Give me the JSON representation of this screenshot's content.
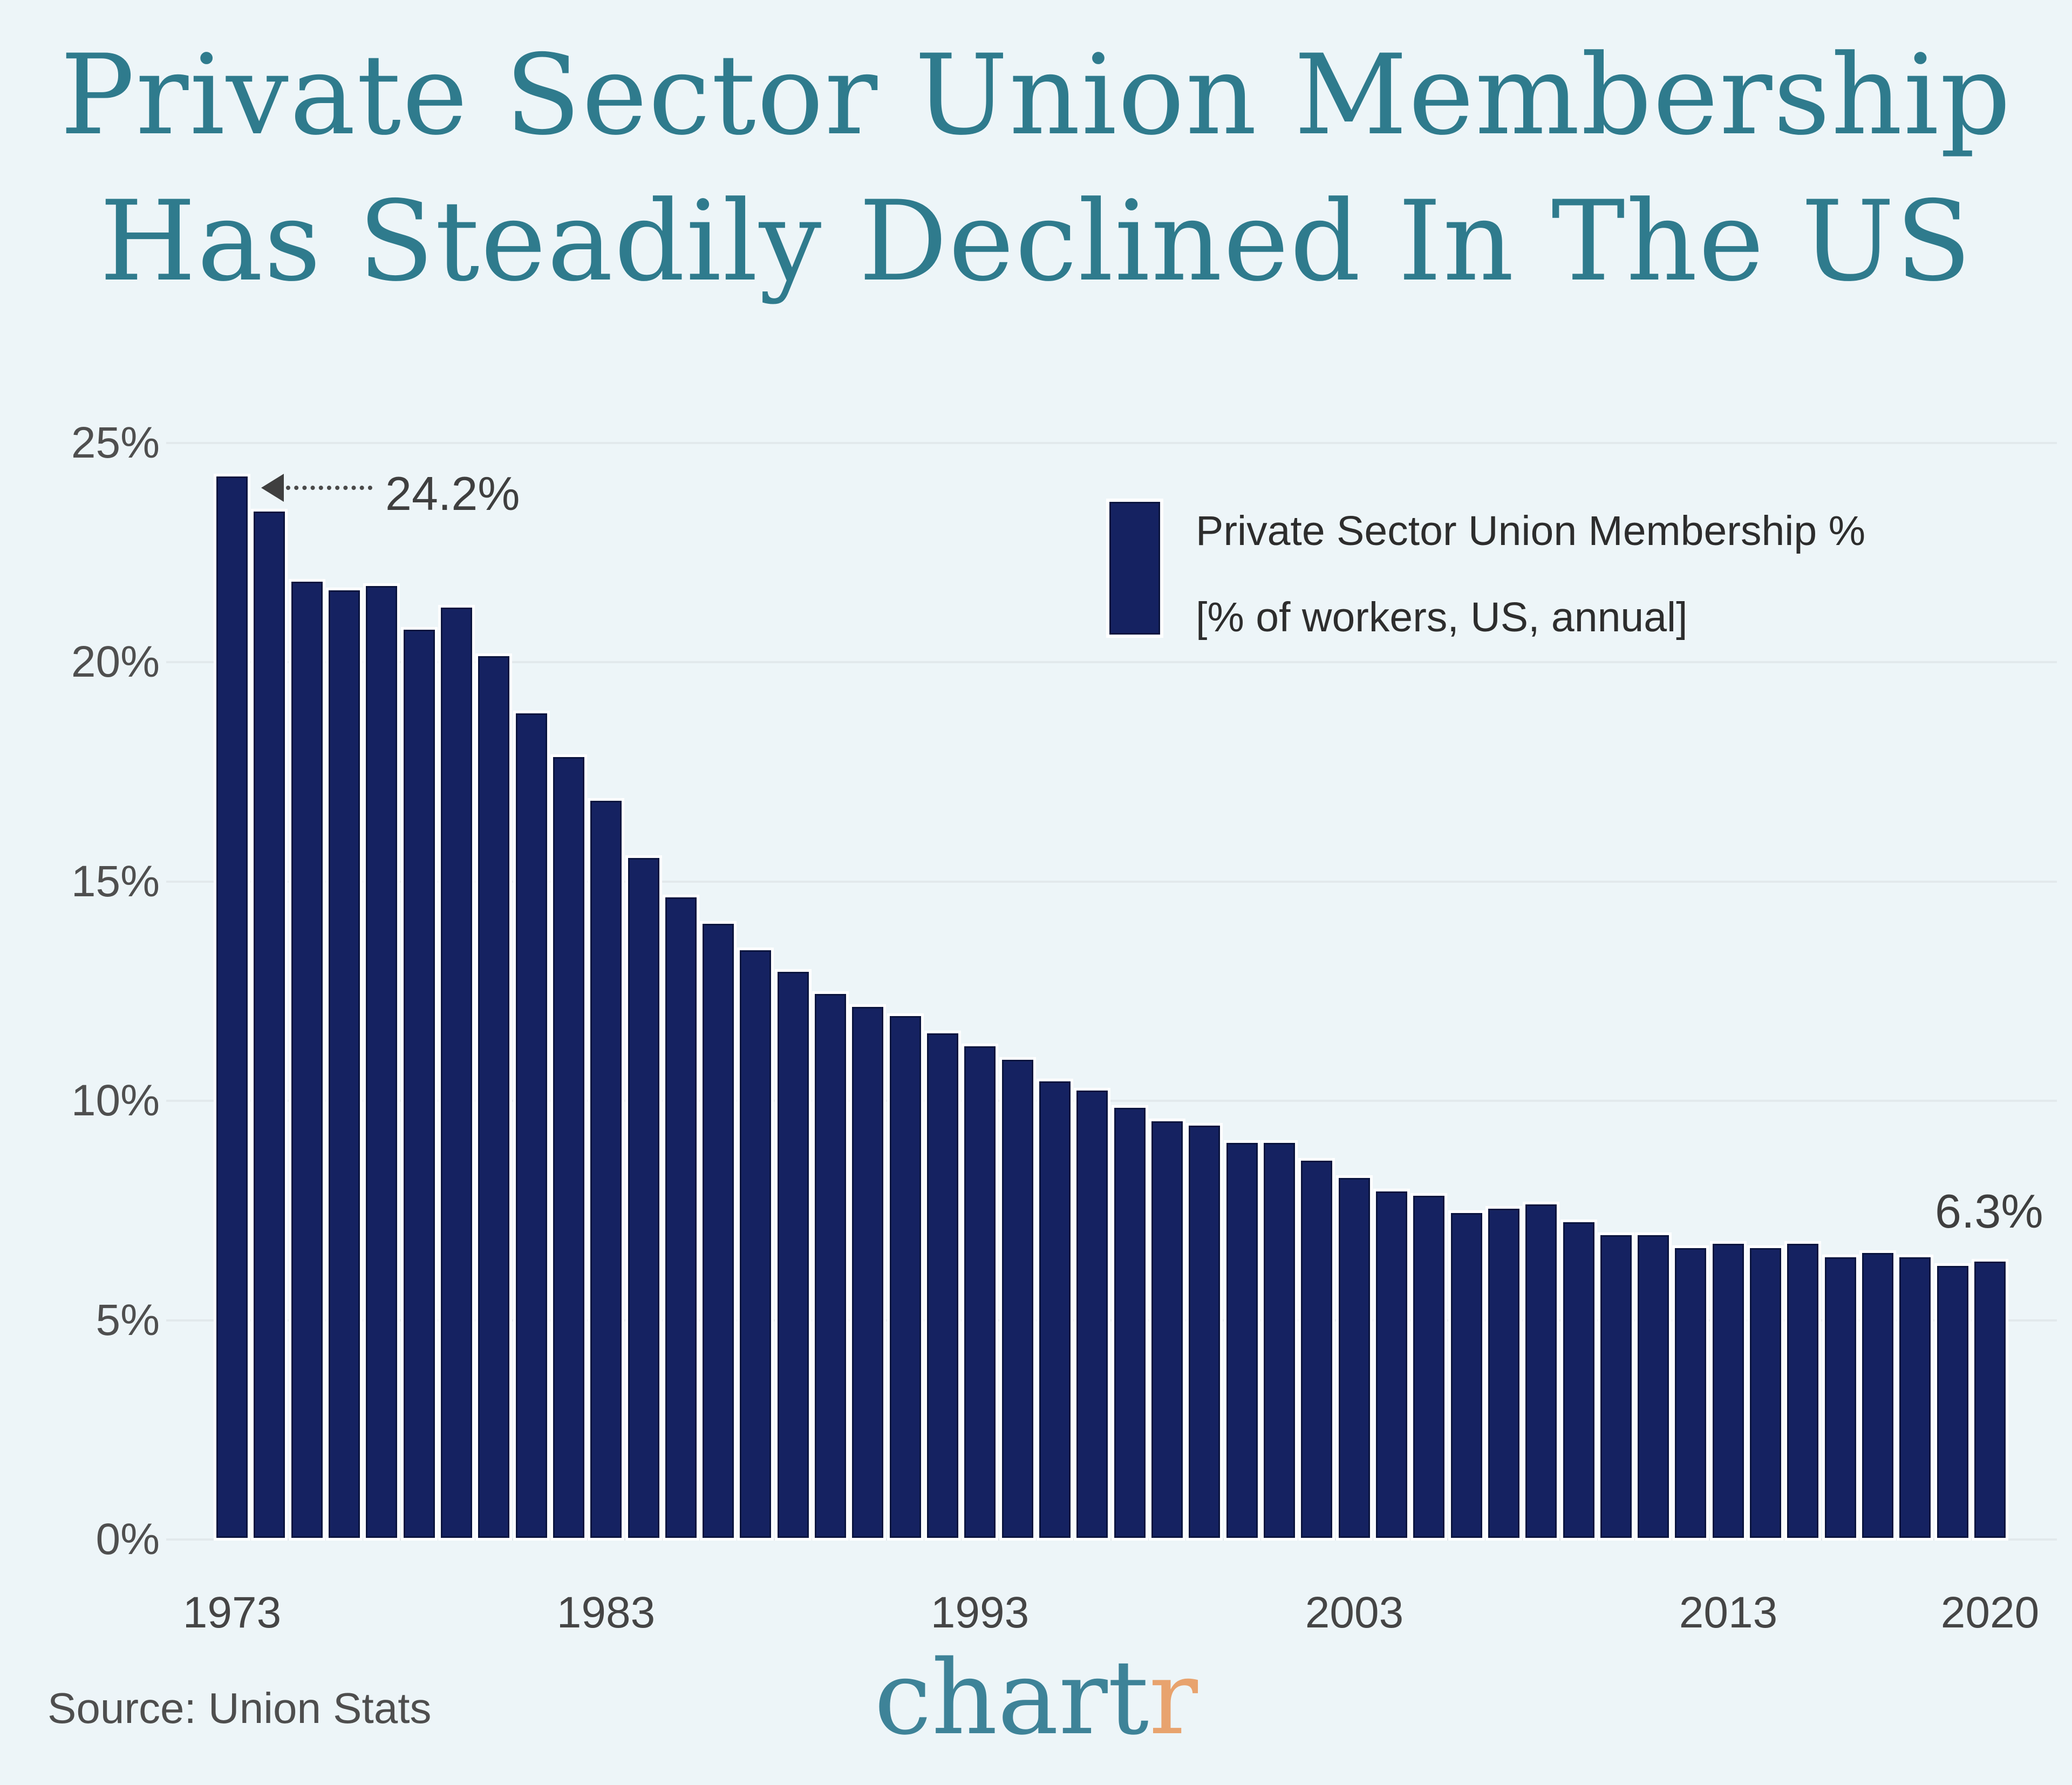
{
  "title": {
    "line1": "Private Sector Union Membership",
    "line2": "Has Steadily Declined In The US"
  },
  "legend": {
    "label": "Private Sector Union Membership %",
    "sublabel": "[% of workers, US, annual]"
  },
  "annotations": {
    "first_value": "24.2%",
    "last_value": "6.3%"
  },
  "footer": {
    "source": "Source: Union Stats",
    "logo_teal": "chart",
    "logo_orange": "r"
  },
  "colors": {
    "background": "#edf5f8",
    "bar": "#152261",
    "bar_edge": "#0b153f",
    "title": "#2f7b8d",
    "gridline": "#e2e9ec",
    "logo_orange": "#e8a36e"
  },
  "chart_data": {
    "type": "bar",
    "title": "Private Sector Union Membership Has Steadily Declined In The US",
    "series_name": "Private Sector Union Membership %",
    "units": "% of workers, US, annual",
    "x": [
      1973,
      1974,
      1975,
      1976,
      1977,
      1978,
      1979,
      1980,
      1981,
      1982,
      1983,
      1984,
      1985,
      1986,
      1987,
      1988,
      1989,
      1990,
      1991,
      1992,
      1993,
      1994,
      1995,
      1996,
      1997,
      1998,
      1999,
      2000,
      2001,
      2002,
      2003,
      2004,
      2005,
      2006,
      2007,
      2008,
      2009,
      2010,
      2011,
      2012,
      2013,
      2014,
      2015,
      2016,
      2017,
      2018,
      2019,
      2020
    ],
    "values": [
      24.2,
      23.4,
      21.8,
      21.6,
      21.7,
      20.7,
      21.2,
      20.1,
      18.8,
      17.8,
      16.8,
      15.5,
      14.6,
      14.0,
      13.4,
      12.9,
      12.4,
      12.1,
      11.9,
      11.5,
      11.2,
      10.9,
      10.4,
      10.2,
      9.8,
      9.5,
      9.4,
      9.0,
      9.0,
      8.6,
      8.2,
      7.9,
      7.8,
      7.4,
      7.5,
      7.6,
      7.2,
      6.9,
      6.9,
      6.6,
      6.7,
      6.6,
      6.7,
      6.4,
      6.5,
      6.4,
      6.2,
      6.3
    ],
    "ylim": [
      0,
      25
    ],
    "y_tick_values": [
      0,
      5,
      10,
      15,
      20,
      25
    ],
    "y_tick_labels": [
      "0%",
      "5%",
      "10%",
      "15%",
      "20%",
      "25%"
    ],
    "x_tick_years": [
      1973,
      1983,
      1993,
      2003,
      2013,
      2020
    ],
    "grid": "horizontal",
    "legend_position": "upper right",
    "xlabel": "",
    "ylabel": ""
  }
}
